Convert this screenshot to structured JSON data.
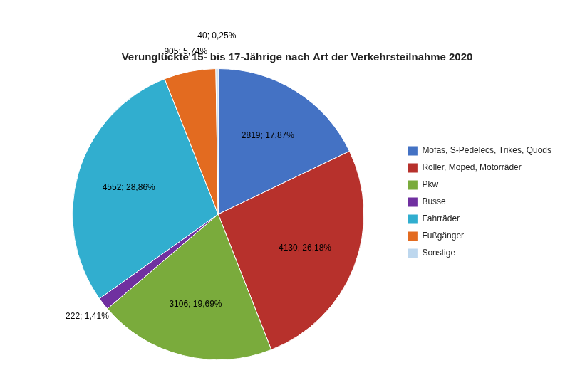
{
  "chart_data": {
    "type": "pie",
    "title": "Verunglückte 15- bis 17-Jährige nach Art der Verkehrsteilnahme 2020",
    "categories": [
      "Mofas, S-Pedelecs, Trikes, Quods",
      "Roller, Moped, Motorräder",
      "Pkw",
      "Busse",
      "Fahrräder",
      "Fußgänger",
      "Sonstige"
    ],
    "values": [
      2819,
      4130,
      3106,
      222,
      4552,
      905,
      40
    ],
    "value_labels": [
      "2819; 17,87%",
      "4130; 26,18%",
      "3106; 19,69%",
      "222; 1,41%",
      "4552; 28,86%",
      "905; 5,74%",
      "40; 0,25%"
    ],
    "colors": [
      "#4472C4",
      "#B7312C",
      "#7AAB3C",
      "#7030A0",
      "#31AECF",
      "#E36B20",
      "#BDD7EE"
    ],
    "data_labels": true,
    "legend": "right"
  }
}
